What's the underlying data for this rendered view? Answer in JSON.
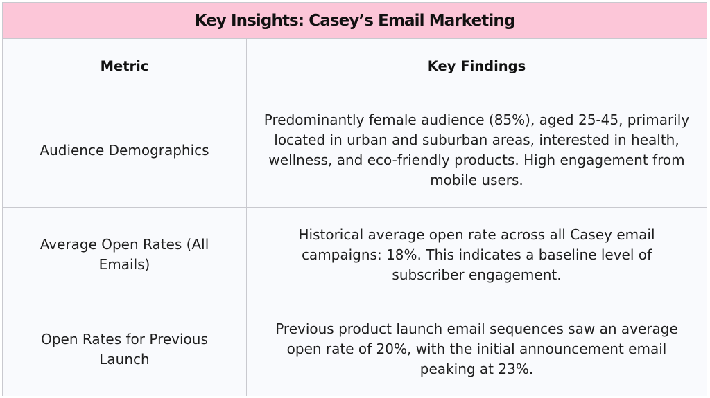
{
  "title": "Key Insights: Casey’s Email Marketing",
  "table": {
    "headers": [
      "Metric",
      "Key Findings"
    ],
    "rows": [
      {
        "metric": "Audience Demographics",
        "finding": "Predominantly female audience (85%), aged 25-45, primarily located in urban and suburban areas, interested in health, wellness, and eco-friendly products. High engagement from mobile users."
      },
      {
        "metric": "Average Open Rates (All Emails)",
        "finding": "Historical average open rate across all Casey email campaigns: 18%. This indicates a baseline level of subscriber engagement."
      },
      {
        "metric": "Open Rates for Previous Launch",
        "finding": "Previous product launch email sequences saw an average open rate of 20%, with the initial announcement email peaking at 23%."
      }
    ]
  }
}
